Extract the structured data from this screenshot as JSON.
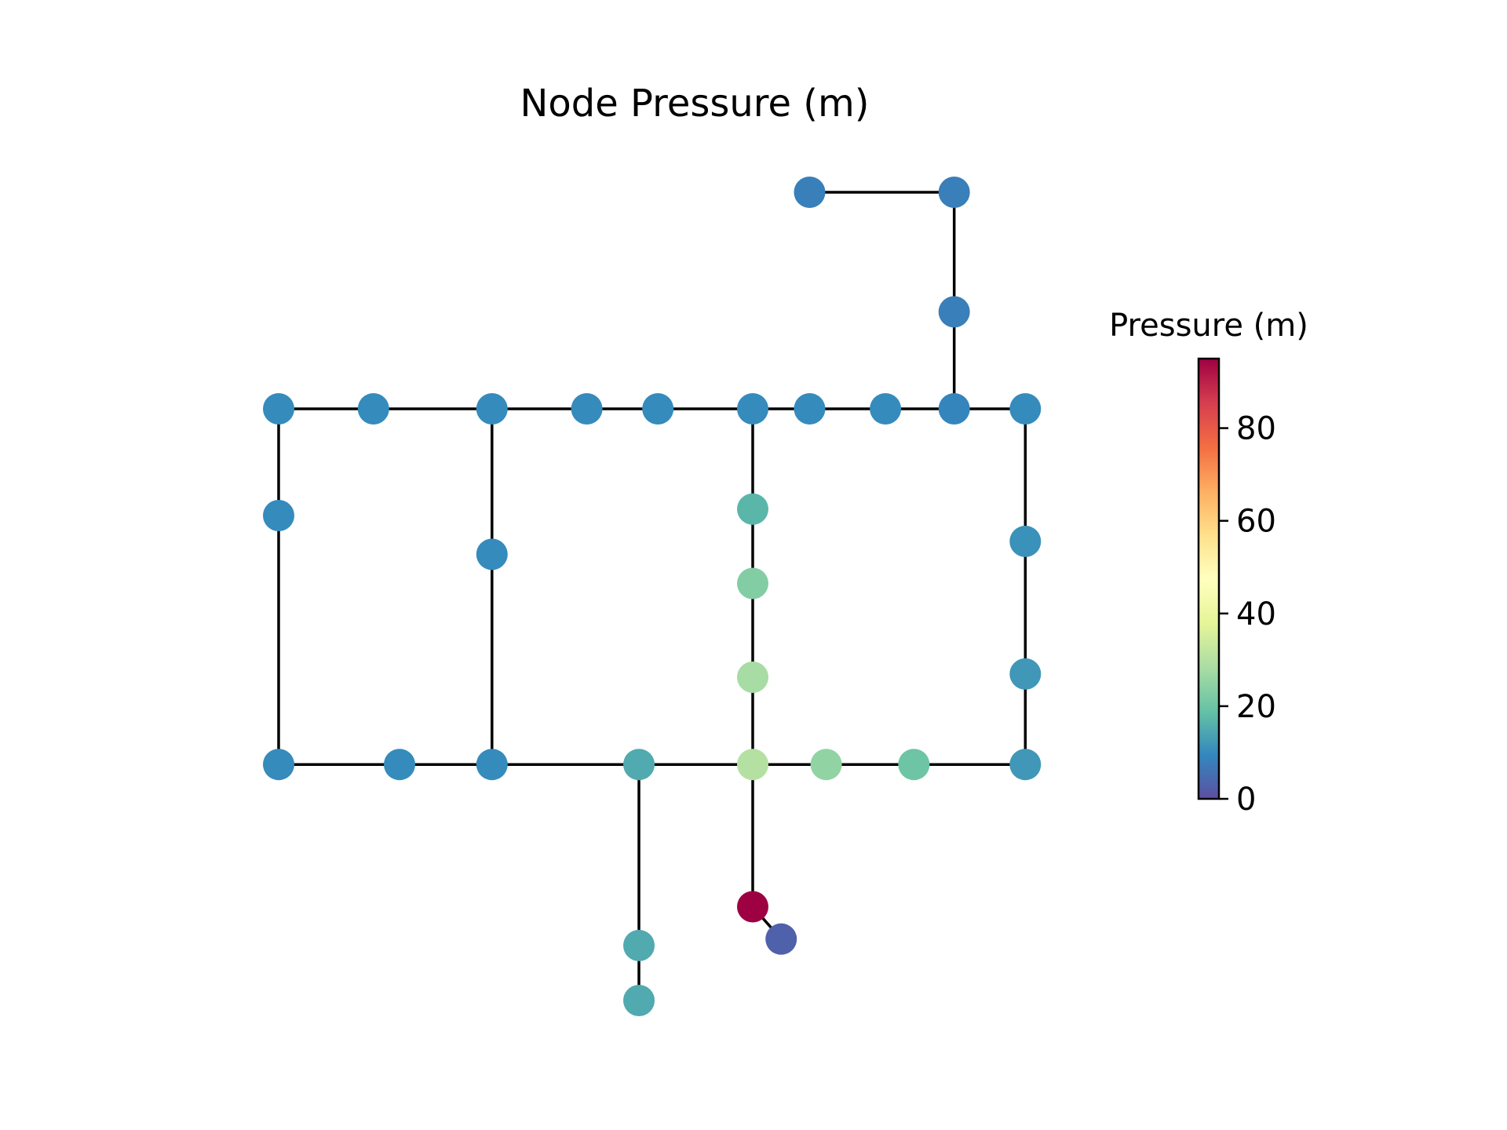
{
  "title": "Node Pressure (m)",
  "colorbar": {
    "label": "Pressure (m)",
    "min": 0,
    "max": 95,
    "ticks": [
      0,
      20,
      40,
      60,
      80
    ],
    "colormap": "Spectral_r",
    "colors": [
      "#5e4fa2",
      "#3288bd",
      "#66c2a5",
      "#abdda4",
      "#e6f598",
      "#ffffbf",
      "#fee08b",
      "#fdae61",
      "#f46d43",
      "#d53e4f",
      "#9e0142"
    ]
  },
  "network": {
    "nodes": [
      {
        "id": "n01",
        "x": 0,
        "y": 10,
        "pressure": 10
      },
      {
        "id": "n02",
        "x": 4,
        "y": 10,
        "pressure": 10
      },
      {
        "id": "n03",
        "x": 9,
        "y": 10,
        "pressure": 10
      },
      {
        "id": "n04",
        "x": 13,
        "y": 10,
        "pressure": 10
      },
      {
        "id": "n05",
        "x": 16,
        "y": 10,
        "pressure": 10
      },
      {
        "id": "n06",
        "x": 20,
        "y": 10,
        "pressure": 10
      },
      {
        "id": "n07",
        "x": 22.4,
        "y": 10,
        "pressure": 10
      },
      {
        "id": "n08",
        "x": 25.6,
        "y": 10,
        "pressure": 10
      },
      {
        "id": "n09",
        "x": 28.5,
        "y": 10,
        "pressure": 9
      },
      {
        "id": "n10",
        "x": 31.5,
        "y": 10,
        "pressure": 10
      },
      {
        "id": "n11",
        "x": 0,
        "y": 6.7,
        "pressure": 10
      },
      {
        "id": "n12",
        "x": 9,
        "y": 5.5,
        "pressure": 10
      },
      {
        "id": "n13",
        "x": 20,
        "y": 6.9,
        "pressure": 17
      },
      {
        "id": "n14",
        "x": 20,
        "y": 4.6,
        "pressure": 23
      },
      {
        "id": "n15",
        "x": 20,
        "y": 1.7,
        "pressure": 28
      },
      {
        "id": "n16",
        "x": 31.5,
        "y": 5.9,
        "pressure": 11
      },
      {
        "id": "n17",
        "x": 31.5,
        "y": 1.8,
        "pressure": 12
      },
      {
        "id": "n18",
        "x": 0,
        "y": -1,
        "pressure": 10
      },
      {
        "id": "n19",
        "x": 5.1,
        "y": -1,
        "pressure": 10
      },
      {
        "id": "n20",
        "x": 9,
        "y": -1,
        "pressure": 10
      },
      {
        "id": "n21",
        "x": 15.2,
        "y": -1,
        "pressure": 15
      },
      {
        "id": "n22",
        "x": 20,
        "y": -1,
        "pressure": 30
      },
      {
        "id": "n23",
        "x": 23.1,
        "y": -1,
        "pressure": 25
      },
      {
        "id": "n24",
        "x": 26.8,
        "y": -1,
        "pressure": 20
      },
      {
        "id": "n25",
        "x": 31.5,
        "y": -1,
        "pressure": 12
      },
      {
        "id": "n26",
        "x": 15.2,
        "y": -6.6,
        "pressure": 15
      },
      {
        "id": "n27",
        "x": 15.2,
        "y": -8.3,
        "pressure": 15
      },
      {
        "id": "n28",
        "x": 20,
        "y": -5.4,
        "pressure": 95
      },
      {
        "id": "n29",
        "x": 21.2,
        "y": -6.4,
        "pressure": 3
      },
      {
        "id": "n30",
        "x": 22.4,
        "y": 16.7,
        "pressure": 8
      },
      {
        "id": "n31",
        "x": 28.5,
        "y": 16.7,
        "pressure": 8
      },
      {
        "id": "n32",
        "x": 28.5,
        "y": 13,
        "pressure": 8
      }
    ],
    "links": [
      [
        "n01",
        "n02"
      ],
      [
        "n02",
        "n03"
      ],
      [
        "n03",
        "n04"
      ],
      [
        "n04",
        "n05"
      ],
      [
        "n05",
        "n06"
      ],
      [
        "n06",
        "n07"
      ],
      [
        "n07",
        "n08"
      ],
      [
        "n08",
        "n09"
      ],
      [
        "n09",
        "n10"
      ],
      [
        "n01",
        "n11"
      ],
      [
        "n11",
        "n18"
      ],
      [
        "n03",
        "n12"
      ],
      [
        "n12",
        "n20"
      ],
      [
        "n06",
        "n13"
      ],
      [
        "n13",
        "n14"
      ],
      [
        "n14",
        "n15"
      ],
      [
        "n15",
        "n22"
      ],
      [
        "n10",
        "n16"
      ],
      [
        "n16",
        "n17"
      ],
      [
        "n17",
        "n25"
      ],
      [
        "n18",
        "n19"
      ],
      [
        "n19",
        "n20"
      ],
      [
        "n20",
        "n21"
      ],
      [
        "n21",
        "n22"
      ],
      [
        "n22",
        "n23"
      ],
      [
        "n23",
        "n24"
      ],
      [
        "n24",
        "n25"
      ],
      [
        "n21",
        "n26"
      ],
      [
        "n26",
        "n27"
      ],
      [
        "n22",
        "n28"
      ],
      [
        "n28",
        "n29"
      ],
      [
        "n30",
        "n31"
      ],
      [
        "n31",
        "n32"
      ],
      [
        "n32",
        "n09"
      ]
    ]
  }
}
